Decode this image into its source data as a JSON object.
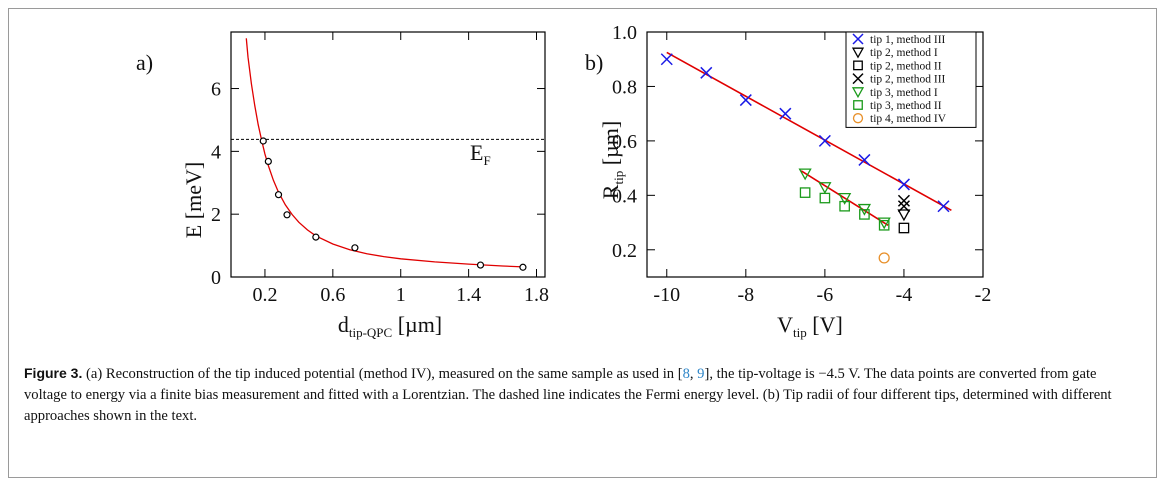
{
  "figure": {
    "caption_label": "Figure 3.",
    "caption_a": " (a) Reconstruction of the tip induced potential (method IV), measured on the same sample as used in [",
    "ref_1": "8",
    "caption_sep": ", ",
    "ref_2": "9",
    "caption_b": "], the tip-voltage is −4.5 V. The data points are converted from gate voltage to energy via a finite bias measurement and fitted with a Lorentzian. The dashed line indicates the Fermi energy level. (b) Tip radii of four different tips, determined with different approaches shown in the text."
  },
  "colors": {
    "fit": "#e00000",
    "blue": "#1a1ae6",
    "black": "#000000",
    "green": "#1a9a1a",
    "orange": "#e8902a"
  },
  "chart_data": [
    {
      "panel_label": "a)",
      "type": "scatter",
      "xlabel_main": "d",
      "xlabel_sub": "tip-QPC",
      "xlabel_unit": " [µm]",
      "ylabel": "E [meV]",
      "xlim": [
        0,
        1.85
      ],
      "ylim": [
        0,
        7.8
      ],
      "xticks": [
        0.2,
        0.6,
        1,
        1.4,
        1.8
      ],
      "yticks": [
        0,
        2,
        4,
        6
      ],
      "xticklabels": [
        "0.2",
        "0.6",
        "1",
        "1.4",
        "1.8"
      ],
      "yticklabels": [
        "0",
        "2",
        "4",
        "6"
      ],
      "hline_label_main": "E",
      "hline_label_sub": "F",
      "hline_value": 4.38,
      "points": {
        "x": [
          0.19,
          0.22,
          0.28,
          0.33,
          0.5,
          0.73,
          1.47,
          1.72
        ],
        "y": [
          4.33,
          3.68,
          2.62,
          1.98,
          1.27,
          0.93,
          0.38,
          0.31
        ]
      },
      "fit_curve": {
        "x": [
          0.09,
          0.1,
          0.12,
          0.14,
          0.16,
          0.18,
          0.2,
          0.22,
          0.25,
          0.28,
          0.32,
          0.36,
          0.4,
          0.45,
          0.5,
          0.6,
          0.7,
          0.8,
          0.9,
          1.0,
          1.2,
          1.4,
          1.6,
          1.72
        ],
        "y": [
          7.6,
          7.0,
          6.15,
          5.45,
          4.85,
          4.36,
          3.92,
          3.55,
          3.08,
          2.7,
          2.3,
          1.99,
          1.74,
          1.5,
          1.31,
          1.05,
          0.87,
          0.74,
          0.65,
          0.58,
          0.48,
          0.41,
          0.35,
          0.32
        ]
      }
    },
    {
      "panel_label": "b)",
      "type": "scatter",
      "xlabel_main": "V",
      "xlabel_sub": "tip",
      "xlabel_unit": " [V]",
      "ylabel_main": "R",
      "ylabel_sub": "tip",
      "ylabel_unit": " [µm]",
      "xlim": [
        -10.5,
        -2
      ],
      "ylim": [
        0.1,
        1.0
      ],
      "xticks": [
        -10,
        -8,
        -6,
        -4,
        -2
      ],
      "yticks": [
        0.2,
        0.4,
        0.6,
        0.8,
        1.0
      ],
      "xticklabels": [
        "-10",
        "-8",
        "-6",
        "-4",
        "-2"
      ],
      "yticklabels": [
        "0.2",
        "0.4",
        "0.6",
        "0.8",
        "1.0"
      ],
      "legend_position": "top-right",
      "series": [
        {
          "name": "tip 1, method III",
          "marker": "x",
          "color": "#1a1ae6",
          "x": [
            -10,
            -9,
            -8,
            -7,
            -6,
            -5,
            -4,
            -3
          ],
          "y": [
            0.9,
            0.85,
            0.75,
            0.7,
            0.6,
            0.53,
            0.44,
            0.36
          ]
        },
        {
          "name": "tip 2, method I",
          "marker": "tri",
          "color": "#000000",
          "x": [
            -4
          ],
          "y": [
            0.33
          ]
        },
        {
          "name": "tip 2, method II",
          "marker": "sq",
          "color": "#000000",
          "x": [
            -4
          ],
          "y": [
            0.28
          ]
        },
        {
          "name": "tip 2, method III",
          "marker": "x",
          "color": "#000000",
          "x": [
            -4,
            -4
          ],
          "y": [
            0.38,
            0.36
          ]
        },
        {
          "name": "tip 3, method I",
          "marker": "tri",
          "color": "#1a9a1a",
          "x": [
            -6.5,
            -6,
            -5.5,
            -5,
            -4.5
          ],
          "y": [
            0.48,
            0.43,
            0.39,
            0.35,
            0.3
          ]
        },
        {
          "name": "tip 3, method II",
          "marker": "sq",
          "color": "#1a9a1a",
          "x": [
            -6.5,
            -6,
            -5.5,
            -5,
            -4.5
          ],
          "y": [
            0.41,
            0.39,
            0.36,
            0.33,
            0.29
          ]
        },
        {
          "name": "tip 4, method IV",
          "marker": "circle",
          "color": "#e8902a",
          "x": [
            -4.5
          ],
          "y": [
            0.17
          ]
        }
      ],
      "fit_lines": [
        {
          "x": [
            -10,
            -2.8
          ],
          "y": [
            0.925,
            0.345
          ]
        },
        {
          "x": [
            -6.6,
            -4.4
          ],
          "y": [
            0.49,
            0.29
          ]
        }
      ]
    }
  ]
}
